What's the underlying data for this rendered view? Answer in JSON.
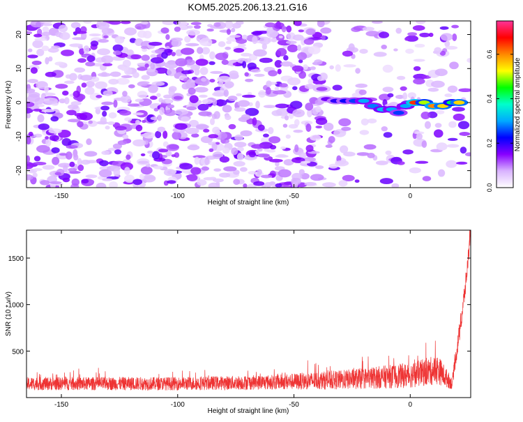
{
  "title": "KOM5.2025.206.13.21.G16",
  "chart_data": [
    {
      "type": "heatmap",
      "xlabel": "Height of straight line (km)",
      "ylabel": "Frequency (Hz)",
      "xlim": [
        -165,
        26
      ],
      "ylim": [
        -25,
        24
      ],
      "xticks": [
        -150,
        -100,
        -50,
        0
      ],
      "yticks": [
        -20,
        -10,
        0,
        10,
        20
      ],
      "colorbar": {
        "label": "Normalized spectral amplitude",
        "range": [
          0.0,
          0.75
        ],
        "ticks": [
          0.0,
          0.2,
          0.4,
          0.6
        ],
        "tick_labels": [
          "0.0",
          "0.2",
          "0.4",
          "0.6"
        ],
        "colormap": [
          "#ffffff",
          "#d9b3ff",
          "#8800ff",
          "#0000ff",
          "#00aaff",
          "#00ffcc",
          "#00ff00",
          "#ffff00",
          "#ff8800",
          "#ff0000",
          "#ff3399"
        ]
      },
      "background_noise_level": 0.08,
      "signal_band": [
        {
          "x": -38,
          "y": 4,
          "value": 0.12
        },
        {
          "x": -36,
          "y": 1,
          "value": 0.16
        },
        {
          "x": -32,
          "y": 0.5,
          "value": 0.2
        },
        {
          "x": -28,
          "y": 0.5,
          "value": 0.22
        },
        {
          "x": -24,
          "y": 0.5,
          "value": 0.25
        },
        {
          "x": -20,
          "y": 0.5,
          "value": 0.3
        },
        {
          "x": -16,
          "y": -1,
          "value": 0.28
        },
        {
          "x": -12,
          "y": -2,
          "value": 0.32
        },
        {
          "x": -8,
          "y": -2,
          "value": 0.3
        },
        {
          "x": -5,
          "y": -3,
          "value": 0.25
        },
        {
          "x": -2,
          "y": -1,
          "value": 0.3
        },
        {
          "x": 2,
          "y": 0,
          "value": 0.65
        },
        {
          "x": 6,
          "y": 0,
          "value": 0.5
        },
        {
          "x": 10,
          "y": -1,
          "value": 0.6
        },
        {
          "x": 14,
          "y": -1,
          "value": 0.55
        },
        {
          "x": 18,
          "y": 0,
          "value": 0.42
        },
        {
          "x": 21,
          "y": 0,
          "value": 0.55
        }
      ]
    },
    {
      "type": "line",
      "xlabel": "Height of straight line (km)",
      "ylabel": "SNR (10 * v/v)",
      "xlim": [
        -165,
        26
      ],
      "ylim": [
        0,
        1800
      ],
      "xticks": [
        -150,
        -100,
        -50,
        0
      ],
      "yticks": [
        500,
        1000,
        1500
      ],
      "color": "#ee3333",
      "envelope": [
        {
          "x": -165,
          "base": 150,
          "amp": 90
        },
        {
          "x": -100,
          "base": 150,
          "amp": 90
        },
        {
          "x": -60,
          "base": 165,
          "amp": 100
        },
        {
          "x": -30,
          "base": 190,
          "amp": 130
        },
        {
          "x": 0,
          "base": 240,
          "amp": 170
        },
        {
          "x": 12,
          "base": 300,
          "amp": 200
        },
        {
          "x": 18,
          "base": 150,
          "amp": 80
        },
        {
          "x": 20,
          "base": 500,
          "amp": 120
        },
        {
          "x": 22,
          "base": 850,
          "amp": 150
        },
        {
          "x": 24,
          "base": 1250,
          "amp": 150
        },
        {
          "x": 26,
          "base": 1800,
          "amp": 80
        }
      ]
    }
  ]
}
